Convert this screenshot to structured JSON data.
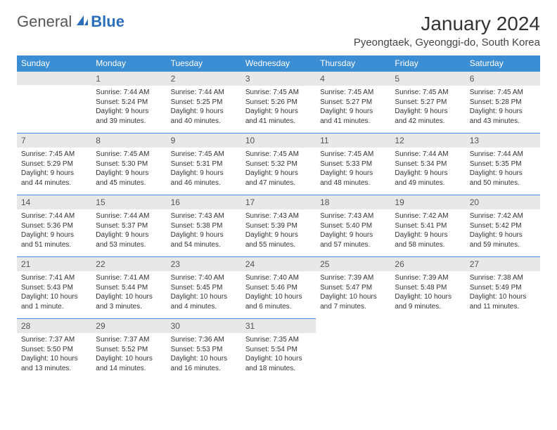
{
  "logo": {
    "general": "General",
    "blue": "Blue"
  },
  "colors": {
    "header_bg": "#3b8dd4",
    "header_text": "#ffffff",
    "daynum_bg": "#e8e8e8",
    "daynum_border": "#3b8dd4",
    "text": "#333333",
    "logo_blue": "#2a6ebb"
  },
  "title": "January 2024",
  "location": "Pyeongtaek, Gyeonggi-do, South Korea",
  "weekdays": [
    "Sunday",
    "Monday",
    "Tuesday",
    "Wednesday",
    "Thursday",
    "Friday",
    "Saturday"
  ],
  "start_offset": 1,
  "days": [
    {
      "n": "1",
      "sunrise": "7:44 AM",
      "sunset": "5:24 PM",
      "daylight": "9 hours and 39 minutes."
    },
    {
      "n": "2",
      "sunrise": "7:44 AM",
      "sunset": "5:25 PM",
      "daylight": "9 hours and 40 minutes."
    },
    {
      "n": "3",
      "sunrise": "7:45 AM",
      "sunset": "5:26 PM",
      "daylight": "9 hours and 41 minutes."
    },
    {
      "n": "4",
      "sunrise": "7:45 AM",
      "sunset": "5:27 PM",
      "daylight": "9 hours and 41 minutes."
    },
    {
      "n": "5",
      "sunrise": "7:45 AM",
      "sunset": "5:27 PM",
      "daylight": "9 hours and 42 minutes."
    },
    {
      "n": "6",
      "sunrise": "7:45 AM",
      "sunset": "5:28 PM",
      "daylight": "9 hours and 43 minutes."
    },
    {
      "n": "7",
      "sunrise": "7:45 AM",
      "sunset": "5:29 PM",
      "daylight": "9 hours and 44 minutes."
    },
    {
      "n": "8",
      "sunrise": "7:45 AM",
      "sunset": "5:30 PM",
      "daylight": "9 hours and 45 minutes."
    },
    {
      "n": "9",
      "sunrise": "7:45 AM",
      "sunset": "5:31 PM",
      "daylight": "9 hours and 46 minutes."
    },
    {
      "n": "10",
      "sunrise": "7:45 AM",
      "sunset": "5:32 PM",
      "daylight": "9 hours and 47 minutes."
    },
    {
      "n": "11",
      "sunrise": "7:45 AM",
      "sunset": "5:33 PM",
      "daylight": "9 hours and 48 minutes."
    },
    {
      "n": "12",
      "sunrise": "7:44 AM",
      "sunset": "5:34 PM",
      "daylight": "9 hours and 49 minutes."
    },
    {
      "n": "13",
      "sunrise": "7:44 AM",
      "sunset": "5:35 PM",
      "daylight": "9 hours and 50 minutes."
    },
    {
      "n": "14",
      "sunrise": "7:44 AM",
      "sunset": "5:36 PM",
      "daylight": "9 hours and 51 minutes."
    },
    {
      "n": "15",
      "sunrise": "7:44 AM",
      "sunset": "5:37 PM",
      "daylight": "9 hours and 53 minutes."
    },
    {
      "n": "16",
      "sunrise": "7:43 AM",
      "sunset": "5:38 PM",
      "daylight": "9 hours and 54 minutes."
    },
    {
      "n": "17",
      "sunrise": "7:43 AM",
      "sunset": "5:39 PM",
      "daylight": "9 hours and 55 minutes."
    },
    {
      "n": "18",
      "sunrise": "7:43 AM",
      "sunset": "5:40 PM",
      "daylight": "9 hours and 57 minutes."
    },
    {
      "n": "19",
      "sunrise": "7:42 AM",
      "sunset": "5:41 PM",
      "daylight": "9 hours and 58 minutes."
    },
    {
      "n": "20",
      "sunrise": "7:42 AM",
      "sunset": "5:42 PM",
      "daylight": "9 hours and 59 minutes."
    },
    {
      "n": "21",
      "sunrise": "7:41 AM",
      "sunset": "5:43 PM",
      "daylight": "10 hours and 1 minute."
    },
    {
      "n": "22",
      "sunrise": "7:41 AM",
      "sunset": "5:44 PM",
      "daylight": "10 hours and 3 minutes."
    },
    {
      "n": "23",
      "sunrise": "7:40 AM",
      "sunset": "5:45 PM",
      "daylight": "10 hours and 4 minutes."
    },
    {
      "n": "24",
      "sunrise": "7:40 AM",
      "sunset": "5:46 PM",
      "daylight": "10 hours and 6 minutes."
    },
    {
      "n": "25",
      "sunrise": "7:39 AM",
      "sunset": "5:47 PM",
      "daylight": "10 hours and 7 minutes."
    },
    {
      "n": "26",
      "sunrise": "7:39 AM",
      "sunset": "5:48 PM",
      "daylight": "10 hours and 9 minutes."
    },
    {
      "n": "27",
      "sunrise": "7:38 AM",
      "sunset": "5:49 PM",
      "daylight": "10 hours and 11 minutes."
    },
    {
      "n": "28",
      "sunrise": "7:37 AM",
      "sunset": "5:50 PM",
      "daylight": "10 hours and 13 minutes."
    },
    {
      "n": "29",
      "sunrise": "7:37 AM",
      "sunset": "5:52 PM",
      "daylight": "10 hours and 14 minutes."
    },
    {
      "n": "30",
      "sunrise": "7:36 AM",
      "sunset": "5:53 PM",
      "daylight": "10 hours and 16 minutes."
    },
    {
      "n": "31",
      "sunrise": "7:35 AM",
      "sunset": "5:54 PM",
      "daylight": "10 hours and 18 minutes."
    }
  ],
  "labels": {
    "sunrise": "Sunrise: ",
    "sunset": "Sunset: ",
    "daylight": "Daylight: "
  }
}
